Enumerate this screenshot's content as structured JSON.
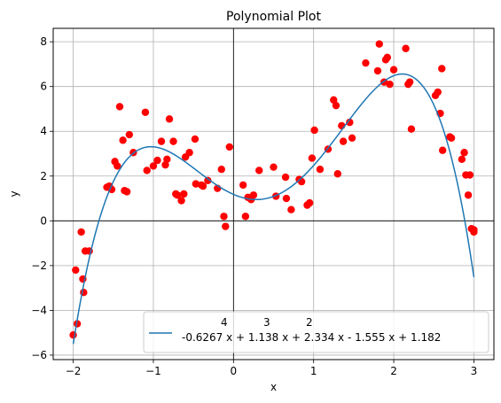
{
  "chart_data": {
    "type": "scatter",
    "title": "Polynomial Plot",
    "xlabel": "x",
    "ylabel": "y",
    "xlim": [
      -2.25,
      3.25
    ],
    "ylim": [
      -6.2,
      8.6
    ],
    "xticks": [
      -2,
      -1,
      0,
      1,
      2,
      3
    ],
    "xtick_labels": [
      "−2",
      "−1",
      "0",
      "1",
      "2",
      "3"
    ],
    "yticks": [
      -6,
      -4,
      -2,
      0,
      2,
      4,
      6,
      8
    ],
    "ytick_labels": [
      "−6",
      "−4",
      "−2",
      "0",
      "2",
      "4",
      "6",
      "8"
    ],
    "grid": true,
    "legend_position": "lower-right",
    "fit": {
      "coefficients": [
        -0.6267,
        1.138,
        2.334,
        -1.555,
        1.182
      ],
      "x_range": [
        -2,
        3
      ],
      "color": "#1f77b4",
      "legend_exponents": [
        "4",
        "3",
        "2"
      ],
      "legend_label": "-0.6267 x + 1.138 x + 2.334 x - 1.555 x + 1.182"
    },
    "points": {
      "color": "#ff0000",
      "x": [
        -2.0,
        -1.97,
        -1.95,
        -1.9,
        -1.88,
        -1.87,
        -1.85,
        -1.8,
        -1.58,
        -1.55,
        -1.52,
        -1.48,
        -1.45,
        -1.42,
        -1.38,
        -1.36,
        -1.33,
        -1.3,
        -1.25,
        -1.1,
        -1.08,
        -1.0,
        -0.95,
        -0.9,
        -0.85,
        -0.83,
        -0.8,
        -0.75,
        -0.72,
        -0.7,
        -0.65,
        -0.62,
        -0.6,
        -0.55,
        -0.48,
        -0.47,
        -0.4,
        -0.38,
        -0.32,
        -0.2,
        -0.15,
        -0.12,
        -0.1,
        -0.05,
        0.12,
        0.15,
        0.18,
        0.22,
        0.25,
        0.32,
        0.5,
        0.53,
        0.65,
        0.66,
        0.72,
        0.82,
        0.85,
        0.92,
        0.95,
        0.98,
        1.01,
        1.08,
        1.18,
        1.25,
        1.28,
        1.3,
        1.35,
        1.37,
        1.45,
        1.48,
        1.65,
        1.8,
        1.82,
        1.88,
        1.9,
        1.92,
        1.95,
        2.0,
        2.15,
        2.18,
        2.2,
        2.22,
        2.52,
        2.55,
        2.58,
        2.6,
        2.61,
        2.7,
        2.72,
        2.85,
        2.88,
        2.9,
        2.93,
        2.95,
        2.97,
        3.0,
        3.0
      ],
      "y": [
        -5.1,
        -2.2,
        -4.6,
        -0.5,
        -2.6,
        -3.2,
        -1.35,
        -1.35,
        1.5,
        1.55,
        1.4,
        2.65,
        2.45,
        5.1,
        3.6,
        1.35,
        1.3,
        3.85,
        3.05,
        4.85,
        2.25,
        2.45,
        2.7,
        3.55,
        2.5,
        2.75,
        4.55,
        3.55,
        1.2,
        1.15,
        0.9,
        1.2,
        2.85,
        3.05,
        3.65,
        1.65,
        1.6,
        1.55,
        1.8,
        1.45,
        2.3,
        0.2,
        -0.25,
        3.3,
        1.6,
        0.2,
        1.05,
        0.95,
        1.15,
        2.25,
        2.4,
        1.1,
        1.95,
        1.0,
        0.5,
        1.85,
        1.75,
        0.7,
        0.8,
        2.8,
        4.05,
        2.3,
        3.2,
        5.4,
        5.15,
        2.1,
        4.25,
        3.55,
        4.4,
        3.7,
        7.05,
        6.7,
        7.9,
        6.2,
        7.2,
        7.3,
        6.1,
        6.75,
        7.7,
        6.1,
        6.2,
        4.1,
        5.6,
        5.75,
        4.8,
        6.8,
        3.15,
        3.75,
        3.7,
        2.75,
        3.05,
        2.05,
        1.15,
        2.05,
        -0.35,
        -0.4,
        -0.5
      ]
    }
  }
}
